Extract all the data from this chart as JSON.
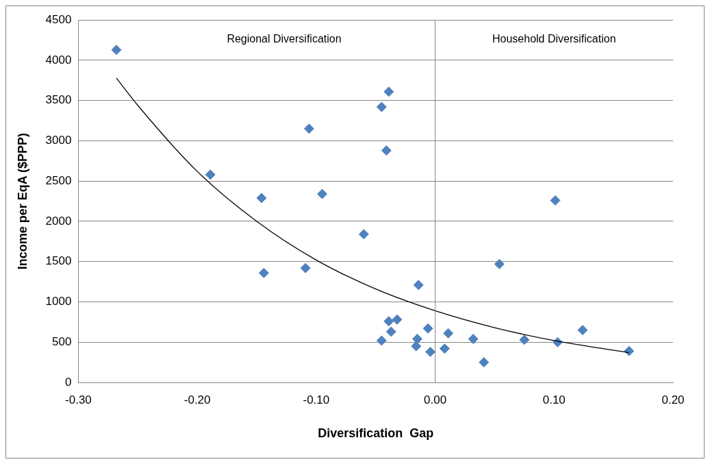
{
  "chart_data": {
    "type": "scatter",
    "xlabel": "Diversification  Gap",
    "ylabel": "Income per EqA ($PPP)",
    "xlim": [
      -0.3,
      0.2
    ],
    "xticks": [
      {
        "value": -0.3,
        "label": "-0.30"
      },
      {
        "value": -0.2,
        "label": "-0.20"
      },
      {
        "value": -0.1,
        "label": "-0.10"
      },
      {
        "value": 0,
        "label": "0.00"
      },
      {
        "value": 0.1,
        "label": "0.10"
      },
      {
        "value": 0.2,
        "label": "0.20"
      }
    ],
    "ylim": [
      0,
      4500
    ],
    "yticks": [
      0,
      500,
      1000,
      1500,
      2000,
      2500,
      3000,
      3500,
      4000,
      4500
    ],
    "grid": "y",
    "legend": false,
    "marker": "diamond",
    "annotations": [
      "Regional Diversification",
      "Household Diversification"
    ],
    "ref_lines": [
      {
        "axis": "x",
        "value": 0,
        "color": "#868686"
      }
    ],
    "series": [
      {
        "type": "scatter",
        "color": "#4f81bd",
        "x": [
          -0.268,
          -0.189,
          -0.146,
          -0.144,
          -0.106,
          -0.109,
          -0.095,
          -0.06,
          -0.045,
          -0.039,
          -0.041,
          -0.045,
          -0.039,
          -0.037,
          -0.032,
          -0.014,
          -0.015,
          -0.016,
          -0.006,
          -0.004,
          0.008,
          0.011,
          0.032,
          0.041,
          0.054,
          0.075,
          0.101,
          0.103,
          0.124,
          0.163
        ],
        "values": [
          4130,
          2580,
          2290,
          1360,
          3150,
          1420,
          2340,
          1840,
          3420,
          3610,
          2880,
          520,
          760,
          630,
          780,
          1210,
          540,
          450,
          670,
          380,
          420,
          610,
          540,
          250,
          1470,
          530,
          2260,
          500,
          650,
          390
        ]
      },
      {
        "type": "line",
        "color": "#000000",
        "marker": "none",
        "x": [
          -0.268,
          -0.25,
          -0.2,
          -0.15,
          -0.1,
          -0.05,
          0,
          0.05,
          0.1,
          0.163
        ],
        "values": [
          3780,
          3440,
          2620,
          2000,
          1520,
          1160,
          890,
          680,
          520,
          370
        ]
      }
    ]
  }
}
